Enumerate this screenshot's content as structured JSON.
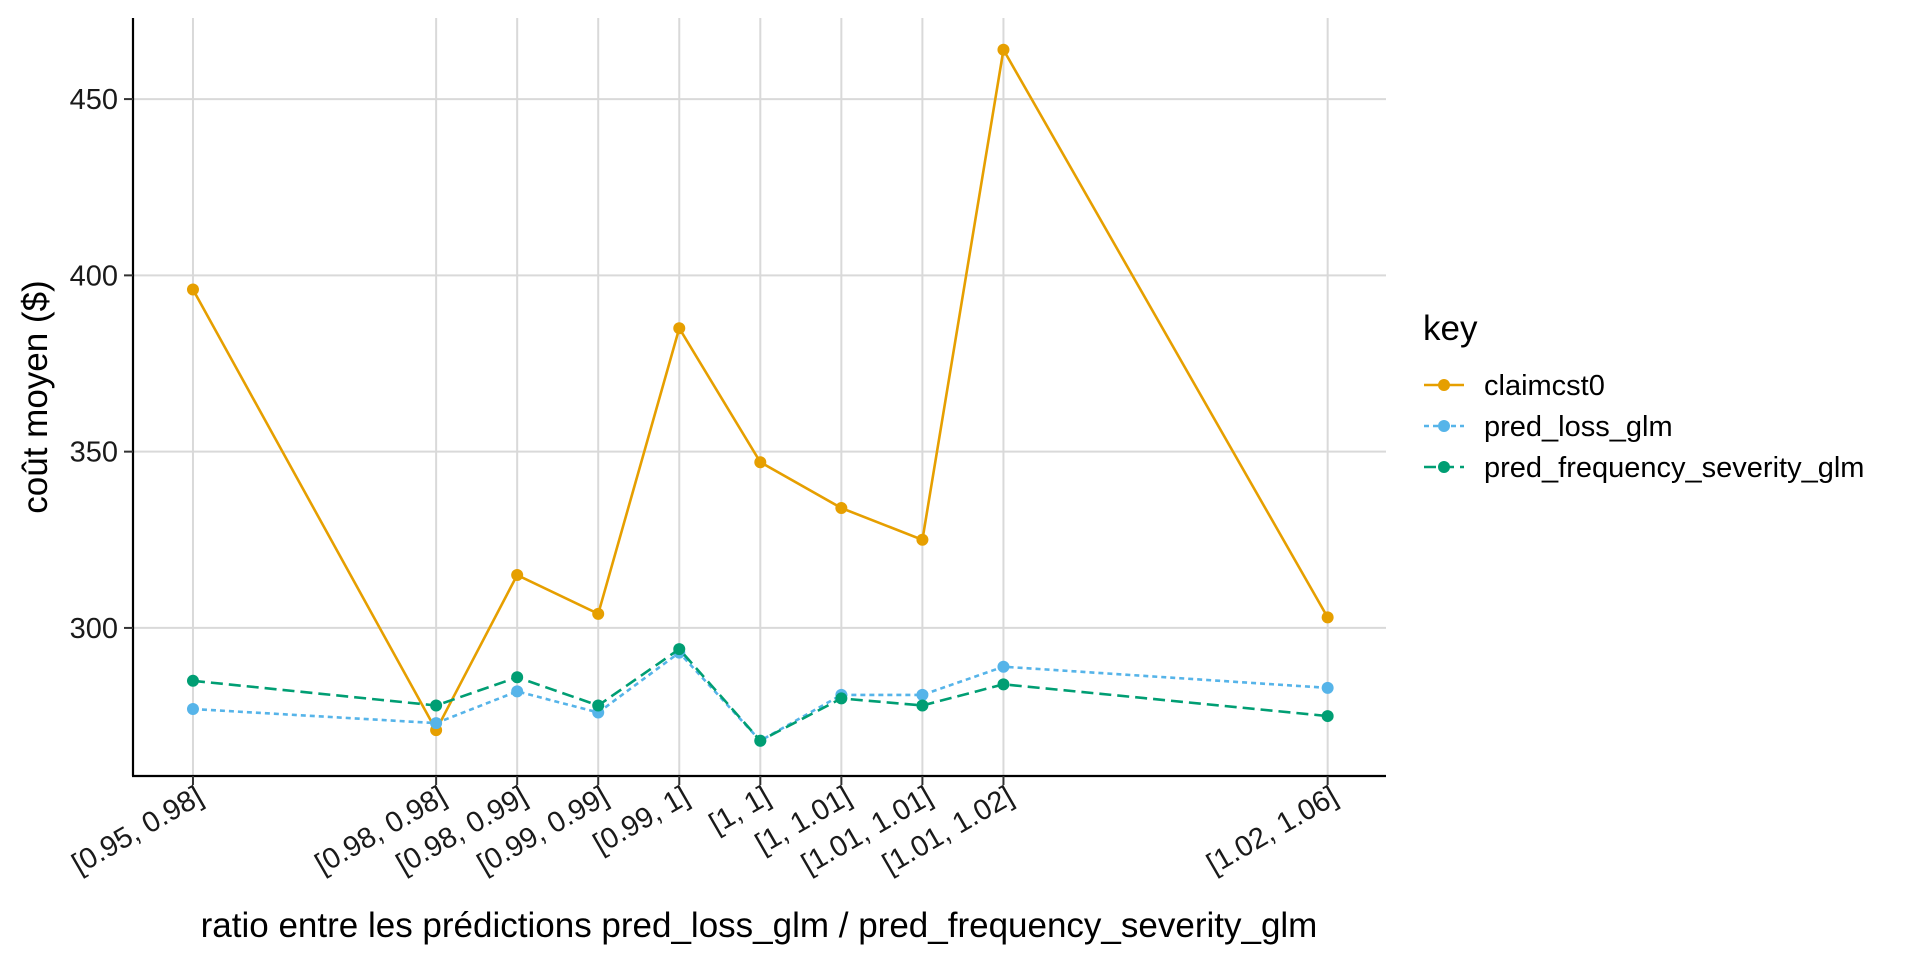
{
  "chart_data": {
    "type": "line",
    "xlabel": "ratio entre les prédictions pred_loss_glm / pred_frequency_severity_glm",
    "ylabel": "coût moyen ($)",
    "x": [
      0.965,
      0.98,
      0.985,
      0.99,
      0.995,
      1.0,
      1.005,
      1.01,
      1.015,
      1.035
    ],
    "categories": [
      "[0.95, 0.98]",
      "[0.98, 0.98]",
      "[0.98, 0.99]",
      "[0.99, 0.99]",
      "[0.99, 1]",
      "[1, 1]",
      "[1, 1.01]",
      "[1.01, 1.01]",
      "[1.01, 1.02]",
      "[1.02, 1.06]"
    ],
    "ylim": [
      258,
      473
    ],
    "yticks": [
      300,
      350,
      400,
      450
    ],
    "grid": true,
    "legend": {
      "title": "key",
      "position": "right"
    },
    "series": [
      {
        "name": "claimcst0",
        "color": "#E69F00",
        "dash": "solid",
        "values": [
          396,
          271,
          315,
          304,
          385,
          347,
          334,
          325,
          464,
          303
        ]
      },
      {
        "name": "pred_loss_glm",
        "color": "#56B4E9",
        "dash": "dotted",
        "values": [
          277,
          273,
          282,
          276,
          293,
          268,
          281,
          281,
          289,
          283
        ]
      },
      {
        "name": "pred_frequency_severity_glm",
        "color": "#009E73",
        "dash": "dashed",
        "values": [
          285,
          278,
          286,
          278,
          294,
          268,
          280,
          278,
          284,
          275
        ]
      }
    ]
  }
}
